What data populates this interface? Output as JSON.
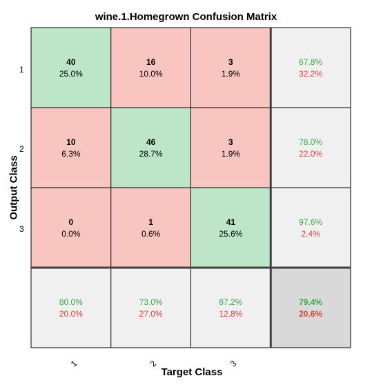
{
  "chart_data": {
    "type": "heatmap",
    "title": "wine.1.Homegrown Confusion Matrix",
    "xlabel": "Target Class",
    "ylabel": "Output Class",
    "x_tick_labels": [
      "1",
      "2",
      "3"
    ],
    "y_tick_labels": [
      "1",
      "2",
      "3"
    ],
    "matrix": [
      [
        {
          "count": "40",
          "pct": "25.0%",
          "kind": "correct"
        },
        {
          "count": "16",
          "pct": "10.0%",
          "kind": "wrong"
        },
        {
          "count": "3",
          "pct": "1.9%",
          "kind": "wrong"
        }
      ],
      [
        {
          "count": "10",
          "pct": "6.3%",
          "kind": "wrong"
        },
        {
          "count": "46",
          "pct": "28.7%",
          "kind": "correct"
        },
        {
          "count": "3",
          "pct": "1.9%",
          "kind": "wrong"
        }
      ],
      [
        {
          "count": "0",
          "pct": "0.0%",
          "kind": "wrong"
        },
        {
          "count": "1",
          "pct": "0.6%",
          "kind": "wrong"
        },
        {
          "count": "41",
          "pct": "25.6%",
          "kind": "correct"
        }
      ]
    ],
    "row_summary": [
      {
        "correct": "67.8%",
        "wrong": "32.2%"
      },
      {
        "correct": "78.0%",
        "wrong": "22.0%"
      },
      {
        "correct": "97.6%",
        "wrong": "2.4%"
      }
    ],
    "col_summary": [
      {
        "correct": "80.0%",
        "wrong": "20.0%"
      },
      {
        "correct": "73.0%",
        "wrong": "27.0%"
      },
      {
        "correct": "87.2%",
        "wrong": "12.8%"
      }
    ],
    "overall": {
      "correct": "79.4%",
      "wrong": "20.6%"
    }
  },
  "colors": {
    "correct_fill": "#bde5c8",
    "wrong_fill": "#f9c5c1",
    "summary_fill": "#f0f0f0",
    "overall_fill": "#d9d9d9",
    "correct_text": "#3ca648",
    "wrong_text": "#e0413a",
    "border": "#000000"
  }
}
